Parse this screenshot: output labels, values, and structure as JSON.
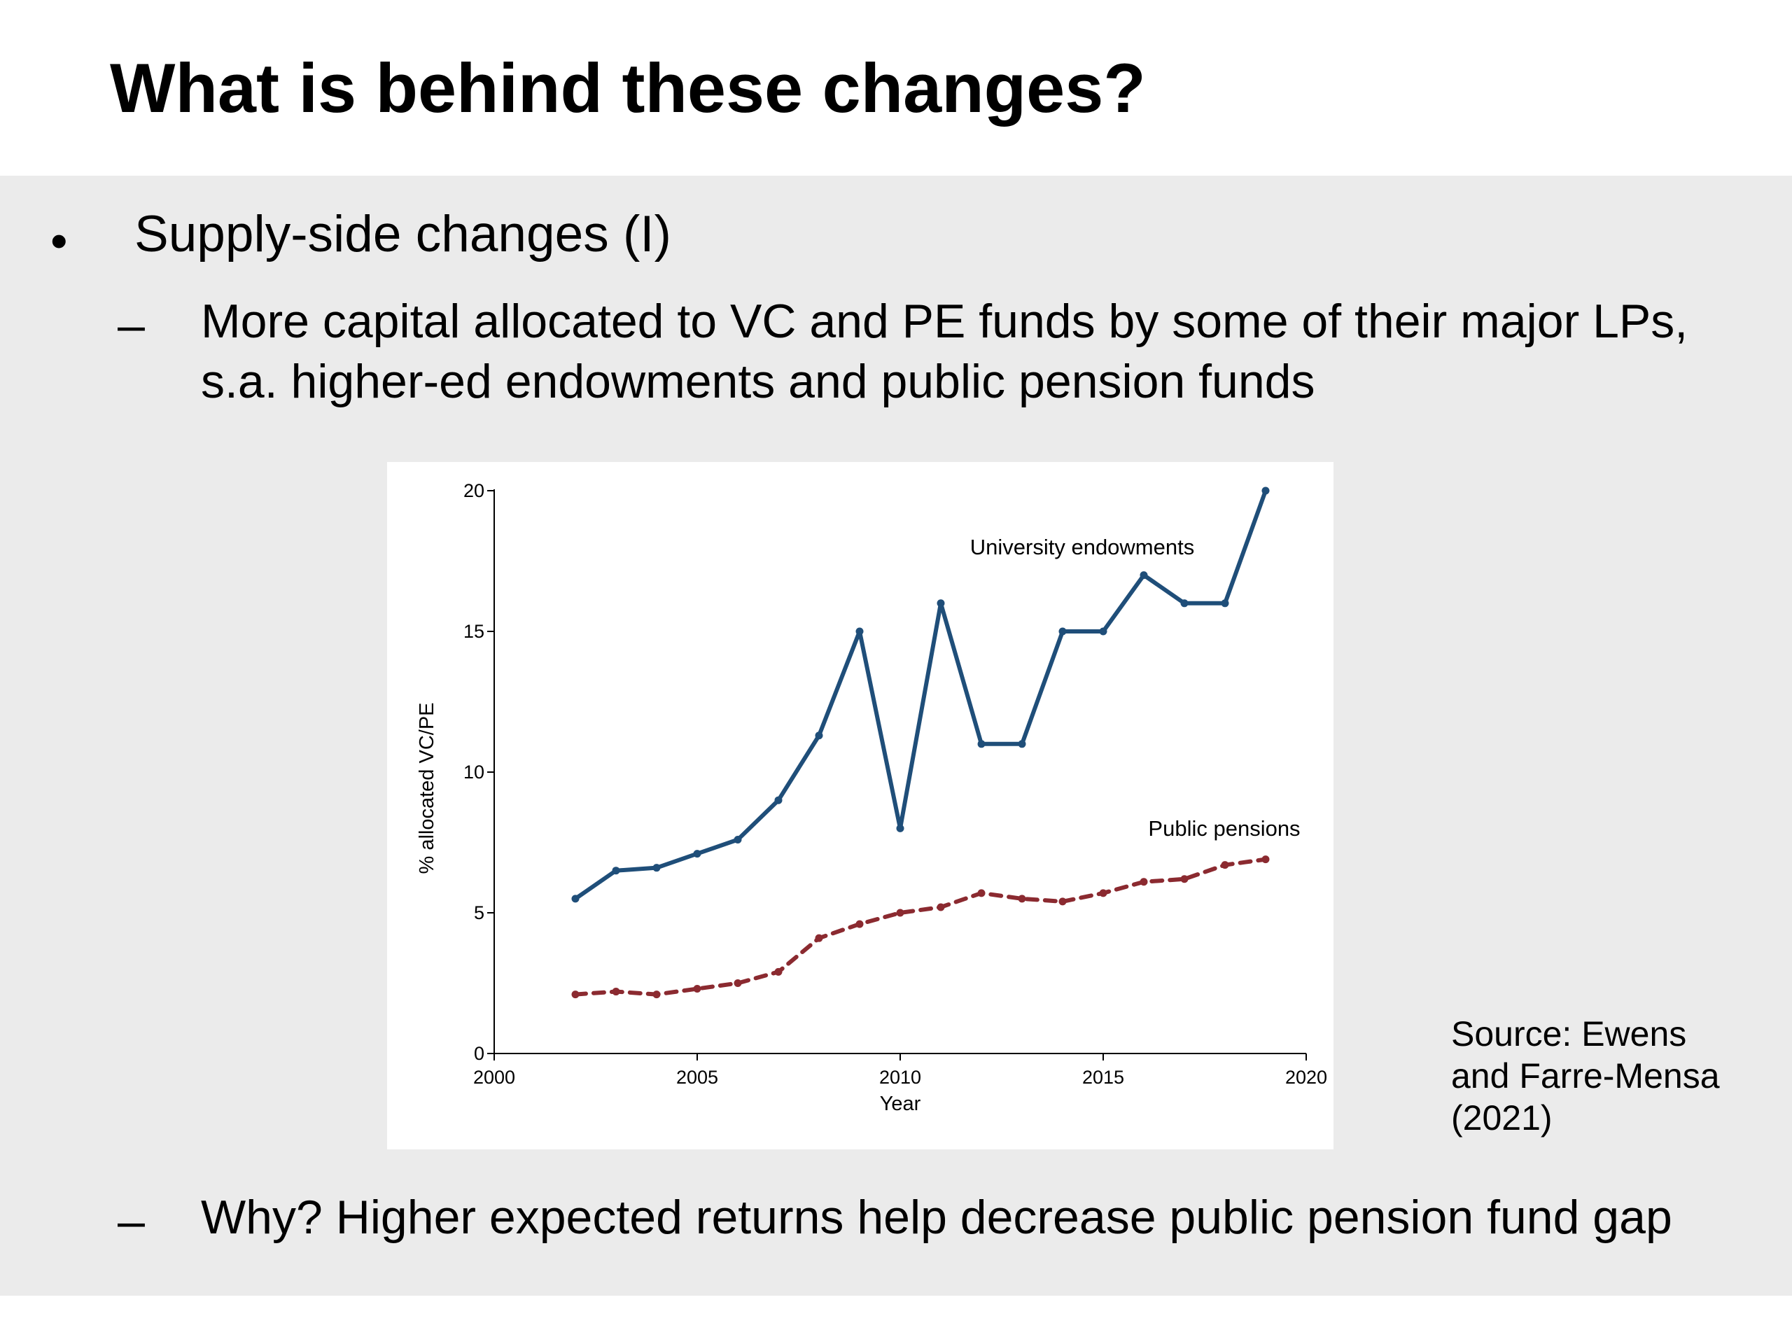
{
  "slide": {
    "title": "What is behind these changes?",
    "bullets": [
      {
        "marker": "•",
        "text": "Supply-side changes (I)"
      }
    ],
    "sub_bullets": [
      {
        "marker": "–",
        "lines": [
          "More capital allocated to VC and PE funds by some of their major LPs,",
          "s.a. higher-ed endowments and public pension funds"
        ]
      },
      {
        "marker": "–",
        "lines": [
          "Why? Higher expected returns help decrease public pension fund gap"
        ]
      }
    ],
    "source": "Source: Ewens and Farre-Mensa (2021)"
  },
  "chart_data": {
    "type": "line",
    "title": "",
    "xlabel": "Year",
    "ylabel": "% allocated VC/PE",
    "xlim": [
      2000,
      2020
    ],
    "ylim": [
      0,
      20
    ],
    "xticks": [
      2000,
      2005,
      2010,
      2015,
      2020
    ],
    "yticks": [
      0,
      5,
      10,
      15,
      20
    ],
    "grid": false,
    "x": [
      2002,
      2003,
      2004,
      2005,
      2006,
      2007,
      2008,
      2009,
      2010,
      2011,
      2012,
      2013,
      2014,
      2015,
      2016,
      2017,
      2018,
      2019
    ],
    "series": [
      {
        "name": "University endowments",
        "color": "#1f4e79",
        "style": "solid",
        "values": [
          5.5,
          6.5,
          6.6,
          7.1,
          7.6,
          9.0,
          11.3,
          15.0,
          8.0,
          16.0,
          11.0,
          11.0,
          15.0,
          15.0,
          17.0,
          16.0,
          16.0,
          20.0
        ]
      },
      {
        "name": "Public pensions",
        "color": "#8b2a30",
        "style": "dashed",
        "values": [
          2.1,
          2.2,
          2.1,
          2.3,
          2.5,
          2.9,
          4.1,
          4.6,
          5.0,
          5.2,
          5.7,
          5.5,
          5.4,
          5.7,
          6.1,
          6.2,
          6.7,
          6.9
        ]
      }
    ]
  }
}
